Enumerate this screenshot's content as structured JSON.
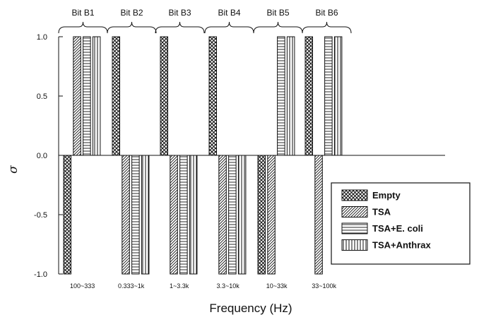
{
  "chart_data": {
    "type": "bar",
    "xlabel": "Frequency (Hz)",
    "ylabel": "σ",
    "ylim": [
      -1.0,
      1.0
    ],
    "yticks": [
      "1.0",
      "0.5",
      "0.0",
      "-0.5",
      "-1.0"
    ],
    "grid": false,
    "legend_position": "bottom-right",
    "categories": [
      "100~333",
      "0.333~1k",
      "1~3.3k",
      "3.3~10k",
      "10~33k",
      "33~100k"
    ],
    "groups": [
      "Bit B1",
      "Bit B2",
      "Bit B3",
      "Bit B4",
      "Bit B5",
      "Bit B6"
    ],
    "series": [
      {
        "name": "Empty",
        "pattern": "crosshatch",
        "values": [
          -1,
          1,
          1,
          1,
          -1,
          1
        ]
      },
      {
        "name": "TSA",
        "pattern": "diagonal",
        "values": [
          1,
          -1,
          -1,
          -1,
          -1,
          -1
        ]
      },
      {
        "name": "TSA+E. coli",
        "pattern": "horizontal",
        "values": [
          1,
          -1,
          -1,
          -1,
          1,
          1
        ]
      },
      {
        "name": "TSA+Anthrax",
        "pattern": "vertical",
        "values": [
          1,
          -1,
          -1,
          -1,
          1,
          1
        ]
      }
    ],
    "colors": {
      "ink": "#111111",
      "background": "#ffffff"
    }
  }
}
